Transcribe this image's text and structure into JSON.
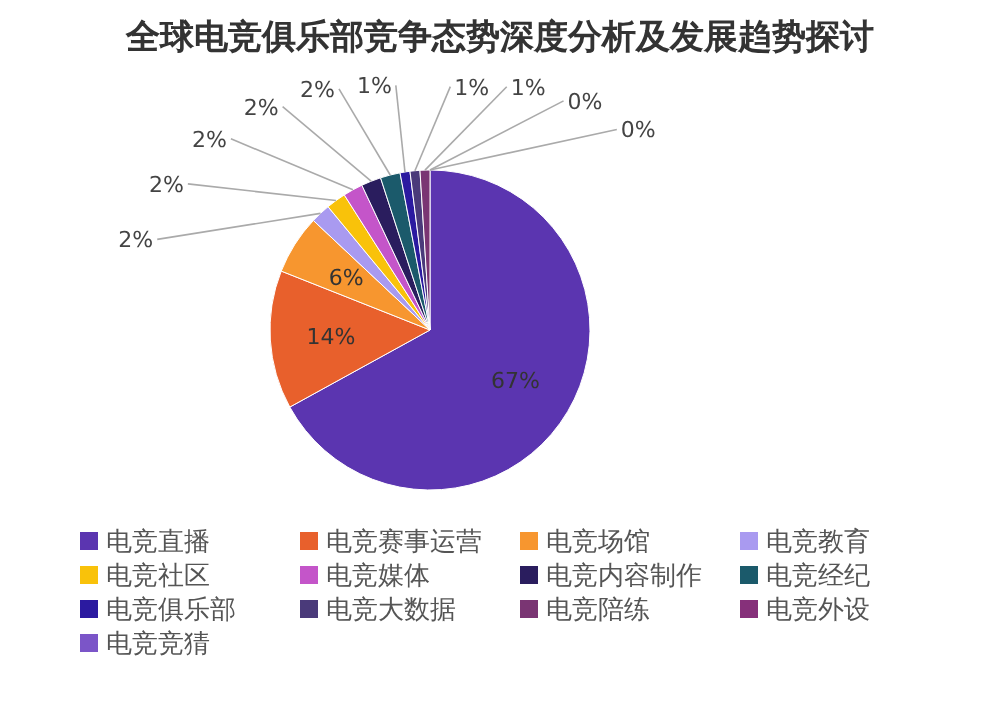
{
  "chart_data": {
    "type": "pie",
    "title": "全球电竞俱乐部竞争态势深度分析及发展趋势探讨",
    "categories": [
      "电竞直播",
      "电竞赛事运营",
      "电竞场馆",
      "电竞教育",
      "电竞社区",
      "电竞媒体",
      "电竞内容制作",
      "电竞经纪",
      "电竞俱乐部",
      "电竞大数据",
      "电竞陪练",
      "电竞外设",
      "电竞竞猜"
    ],
    "values": [
      67,
      14,
      6,
      2,
      2,
      2,
      2,
      2,
      1,
      1,
      1,
      0,
      0
    ],
    "value_labels": [
      "67%",
      "14%",
      "6%",
      "2%",
      "2%",
      "2%",
      "2%",
      "2%",
      "1%",
      "1%",
      "1%",
      "0%",
      "0%"
    ],
    "colors": [
      "#5b35b0",
      "#e8602c",
      "#f7962f",
      "#a99af0",
      "#f9c20a",
      "#c455c9",
      "#2a1d5e",
      "#1b5a6b",
      "#2b1aa0",
      "#4a3a7a",
      "#7a3573",
      "#86307a",
      "#7b55c8"
    ],
    "legend": "bottom"
  }
}
